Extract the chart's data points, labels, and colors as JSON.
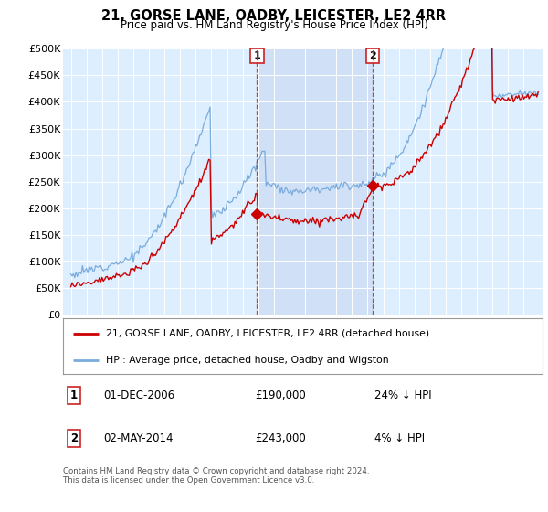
{
  "title": "21, GORSE LANE, OADBY, LEICESTER, LE2 4RR",
  "subtitle": "Price paid vs. HM Land Registry's House Price Index (HPI)",
  "legend_label_red": "21, GORSE LANE, OADBY, LEICESTER, LE2 4RR (detached house)",
  "legend_label_blue": "HPI: Average price, detached house, Oadby and Wigston",
  "footnote": "Contains HM Land Registry data © Crown copyright and database right 2024.\nThis data is licensed under the Open Government Licence v3.0.",
  "transaction1_date": "01-DEC-2006",
  "transaction1_price": "£190,000",
  "transaction1_hpi": "24% ↓ HPI",
  "transaction2_date": "02-MAY-2014",
  "transaction2_price": "£243,000",
  "transaction2_hpi": "4% ↓ HPI",
  "red_color": "#cc0000",
  "blue_color": "#7aacdc",
  "shade_color": "#ddeeff",
  "background_color": "#ddeeff",
  "ylim": [
    0,
    500000
  ],
  "yticks": [
    0,
    50000,
    100000,
    150000,
    200000,
    250000,
    300000,
    350000,
    400000,
    450000,
    500000
  ],
  "transaction1_x": 2006.92,
  "transaction2_x": 2014.33,
  "transaction1_y": 190000,
  "transaction2_y": 243000,
  "xlim_left": 1994.5,
  "xlim_right": 2025.2
}
